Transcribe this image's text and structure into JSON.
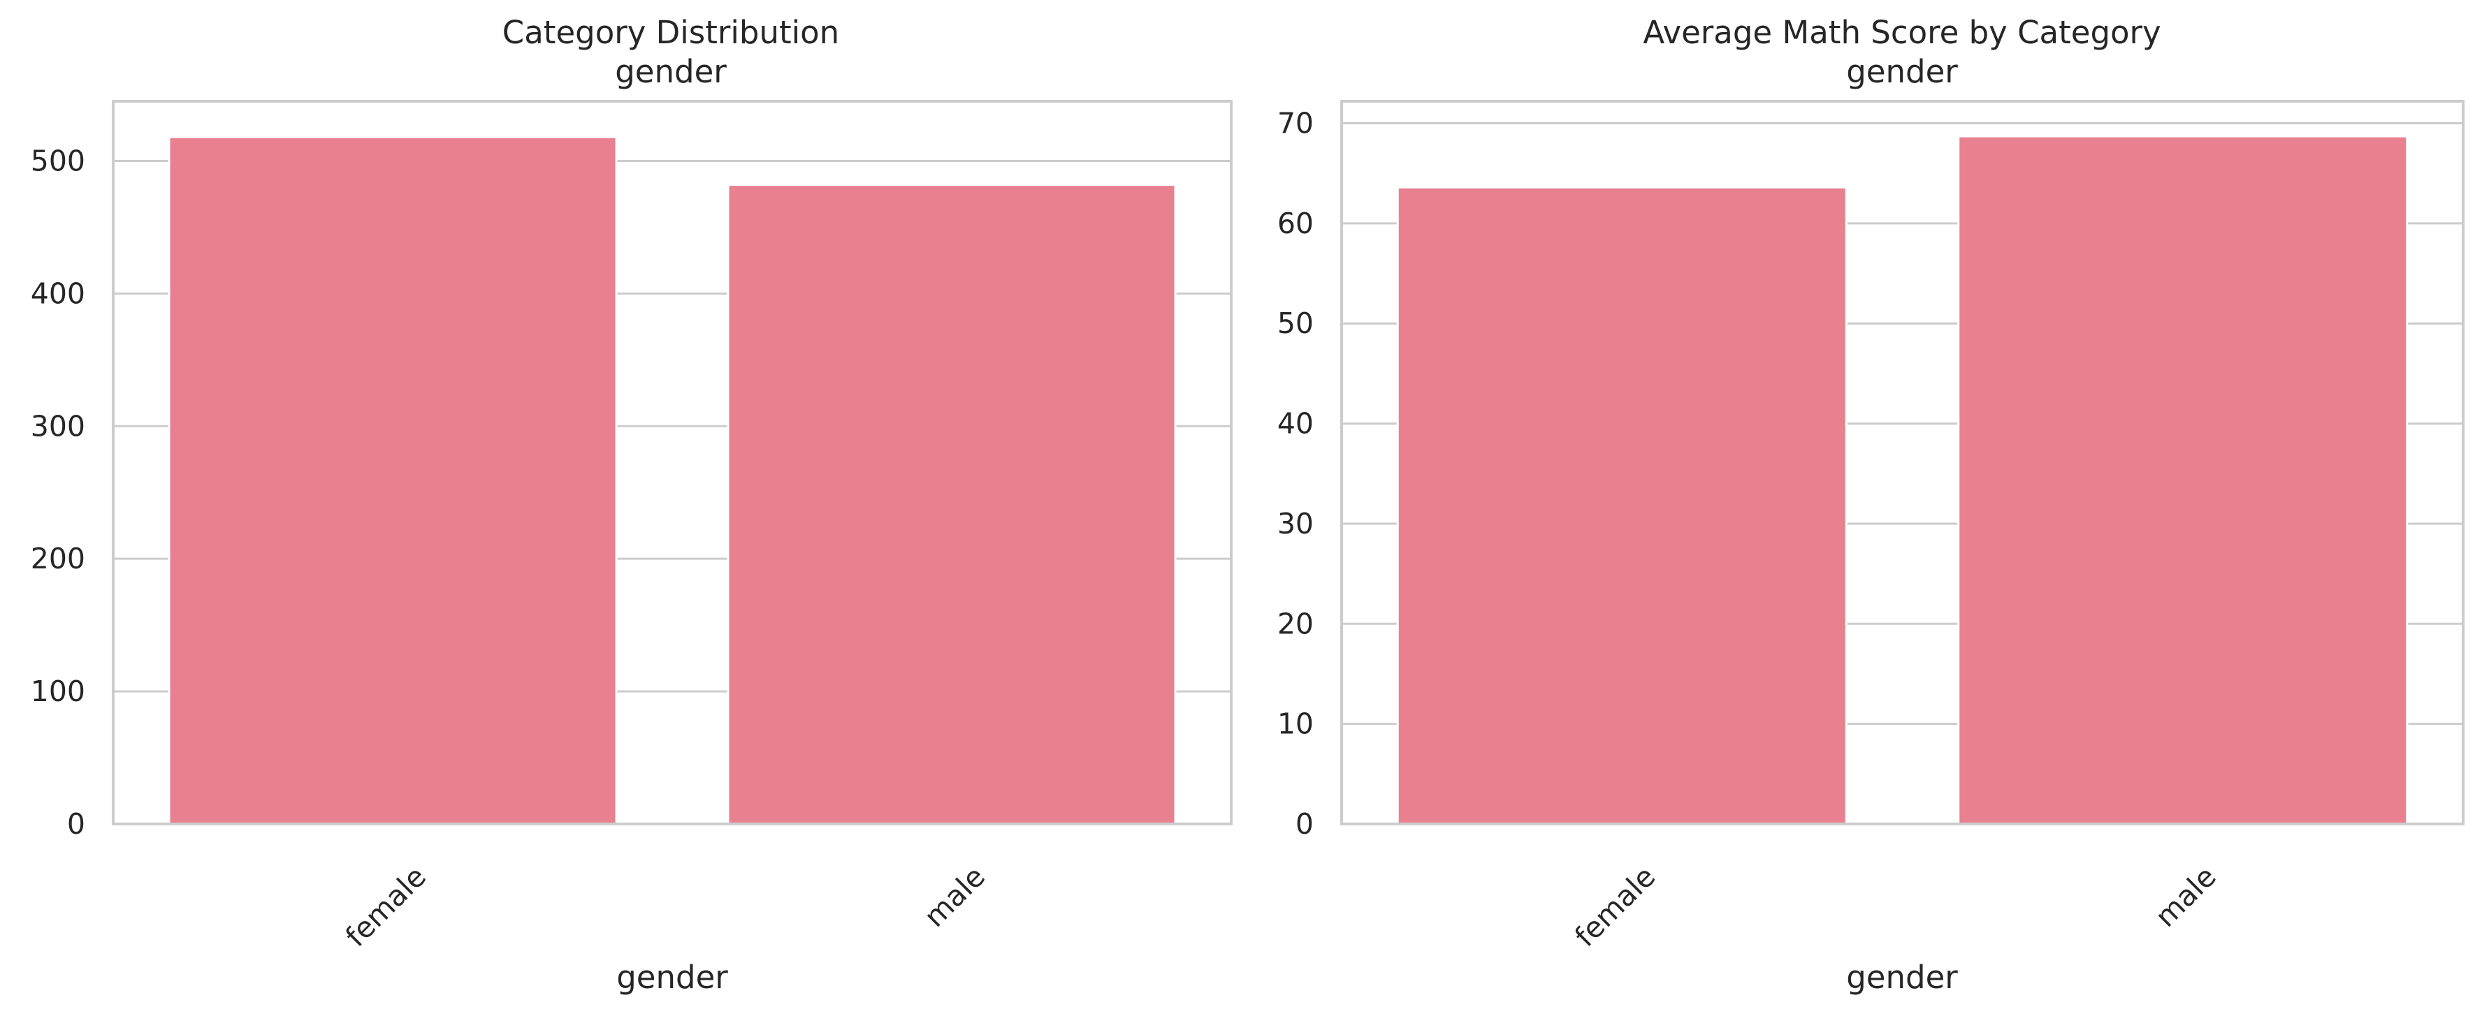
{
  "chart_data": [
    {
      "type": "bar",
      "title": "Category Distribution",
      "subtitle": "gender",
      "xlabel": "gender",
      "ylabel": "",
      "categories": [
        "female",
        "male"
      ],
      "values": [
        518,
        482
      ],
      "ylim": [
        0,
        545
      ],
      "yticks": [
        0,
        100,
        200,
        300,
        400,
        500
      ],
      "grid": true,
      "bar_color": "#e8808f"
    },
    {
      "type": "bar",
      "title": "Average Math Score by Category",
      "subtitle": "gender",
      "xlabel": "gender",
      "ylabel": "",
      "categories": [
        "female",
        "male"
      ],
      "values": [
        63.6,
        68.7
      ],
      "ylim": [
        0,
        72.2
      ],
      "yticks": [
        0,
        10,
        20,
        30,
        40,
        50,
        60,
        70
      ],
      "grid": true,
      "bar_color": "#e8808f"
    }
  ]
}
